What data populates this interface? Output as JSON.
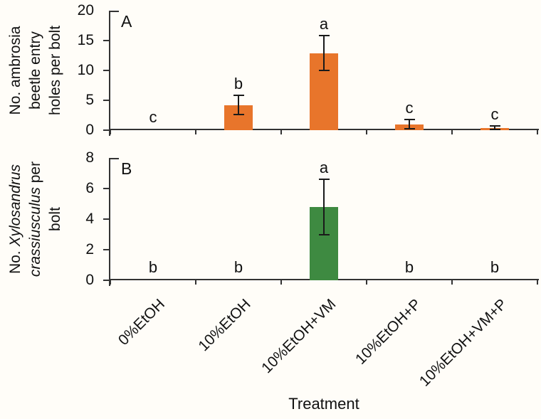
{
  "figure": {
    "xlabel": "Treatment",
    "background": "#fffdf8",
    "axis_color": "#333333",
    "text_color": "#111111",
    "error_bar_color": "#1a1a1a"
  },
  "chart_data": [
    {
      "type": "bar",
      "panel_label": "A",
      "ylabel_text": "No. ambrosia beetle entry holes per bolt",
      "ylabel_lines": [
        [
          {
            "t": "No. ambrosia"
          }
        ],
        [
          {
            "t": "beetle entry"
          }
        ],
        [
          {
            "t": "holes per bolt"
          }
        ]
      ],
      "ylim": [
        0,
        20
      ],
      "yticks": [
        0,
        5,
        10,
        15,
        20
      ],
      "categories": [
        "0%EtOH",
        "10%EtOH",
        "10%EtOH+VM",
        "10%EtOH+P",
        "10%EtOH+VM+P"
      ],
      "values": [
        0,
        4.2,
        12.9,
        1.0,
        0.4
      ],
      "errors": [
        null,
        1.6,
        2.9,
        0.75,
        0.3
      ],
      "sig_letters": [
        "c",
        "b",
        "a",
        "c",
        "c"
      ],
      "bar_color": "#e8752b",
      "legend": "none",
      "grid": "off",
      "show_x_tick_labels": false
    },
    {
      "type": "bar",
      "panel_label": "B",
      "ylabel_text": "No. Xylosandrus crassiusculus per bolt",
      "ylabel_lines": [
        [
          {
            "t": "No. "
          },
          {
            "t": "Xylosandrus",
            "i": true
          }
        ],
        [
          {
            "t": "crassiusculus",
            "i": true
          },
          {
            "t": " per"
          }
        ],
        [
          {
            "t": "bolt"
          }
        ]
      ],
      "ylim": [
        0,
        8
      ],
      "yticks": [
        0,
        2,
        4,
        6,
        8
      ],
      "categories": [
        "0%EtOH",
        "10%EtOH",
        "10%EtOH+VM",
        "10%EtOH+P",
        "10%EtOH+VM+P"
      ],
      "values": [
        0,
        0,
        4.8,
        0,
        0
      ],
      "errors": [
        null,
        null,
        1.8,
        null,
        null
      ],
      "sig_letters": [
        "b",
        "b",
        "a",
        "b",
        "b"
      ],
      "bar_color": "#3e8a41",
      "legend": "none",
      "grid": "off",
      "show_x_tick_labels": true
    }
  ]
}
